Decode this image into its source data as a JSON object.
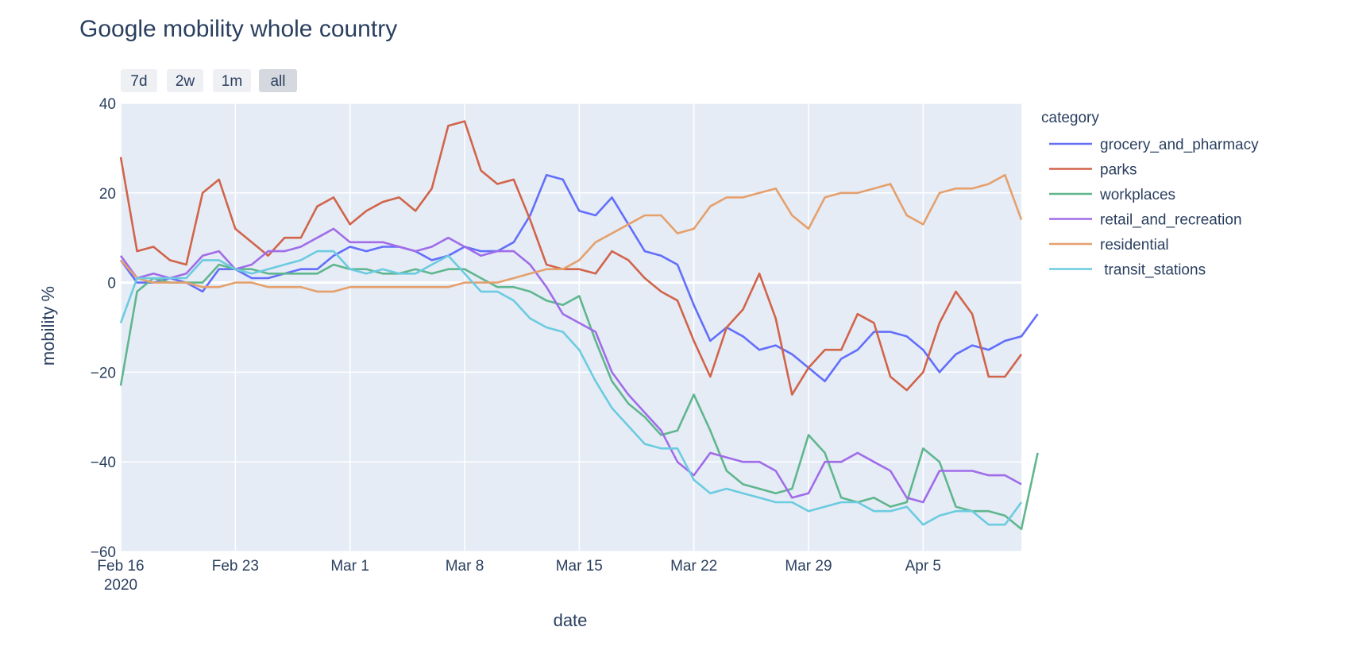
{
  "chart_data": {
    "type": "line",
    "title": "Google mobility whole country",
    "xlabel": "date",
    "ylabel": "mobility %",
    "legend_title": "category",
    "legend_position": "right",
    "ylim": [
      -60,
      40
    ],
    "xlim": [
      "2020-02-16",
      "2020-04-11"
    ],
    "yticks": [
      40,
      20,
      0,
      -20,
      -40,
      -60
    ],
    "ytick_labels": [
      "40",
      "20",
      "0",
      "−20",
      "−40",
      "−60"
    ],
    "xticks": [
      {
        "date": "2020-02-16",
        "label": "Feb 16",
        "sublabel": "2020"
      },
      {
        "date": "2020-02-23",
        "label": "Feb 23"
      },
      {
        "date": "2020-03-01",
        "label": "Mar 1"
      },
      {
        "date": "2020-03-08",
        "label": "Mar 8"
      },
      {
        "date": "2020-03-15",
        "label": "Mar 15"
      },
      {
        "date": "2020-03-22",
        "label": "Mar 22"
      },
      {
        "date": "2020-03-29",
        "label": "Mar 29"
      },
      {
        "date": "2020-04-05",
        "label": "Apr 5"
      }
    ],
    "grid": true,
    "x_start": "2020-02-16",
    "x_step_days": 1,
    "series": [
      {
        "name": "grocery_and_pharmacy",
        "color": "#636efa",
        "values": [
          5,
          0,
          0,
          1,
          0,
          -2,
          3,
          3,
          1,
          1,
          2,
          3,
          3,
          6,
          8,
          7,
          8,
          8,
          7,
          5,
          6,
          8,
          7,
          7,
          9,
          15,
          24,
          23,
          16,
          15,
          19,
          13,
          7,
          6,
          4,
          -5,
          -13,
          -10,
          -12,
          -15,
          -14,
          -16,
          -19,
          -22,
          -17,
          -15,
          -11,
          -11,
          -12,
          -15,
          -20,
          -16,
          -14,
          -15,
          -13,
          -12,
          -7
        ]
      },
      {
        "name": "parks",
        "color": "#d1644a",
        "values": [
          28,
          7,
          8,
          5,
          4,
          20,
          23,
          12,
          9,
          6,
          10,
          10,
          17,
          19,
          13,
          16,
          18,
          19,
          16,
          21,
          35,
          36,
          25,
          22,
          23,
          14,
          4,
          3,
          3,
          2,
          7,
          5,
          1,
          -2,
          -4,
          -13,
          -21,
          -10,
          -6,
          2,
          -8,
          -25,
          -19,
          -15,
          -15,
          -7,
          -9,
          -21,
          -24,
          -20,
          -9,
          -2,
          -7,
          -21,
          -21,
          -16
        ]
      },
      {
        "name": "workplaces",
        "color": "#60b68e",
        "values": [
          -23,
          -2,
          1,
          0,
          0,
          0,
          4,
          3,
          3,
          2,
          2,
          2,
          2,
          4,
          3,
          3,
          2,
          2,
          3,
          2,
          3,
          3,
          1,
          -1,
          -1,
          -2,
          -4,
          -5,
          -3,
          -13,
          -22,
          -27,
          -30,
          -34,
          -33,
          -25,
          -33,
          -42,
          -45,
          -46,
          -47,
          -46,
          -34,
          -38,
          -48,
          -49,
          -48,
          -50,
          -49,
          -37,
          -40,
          -50,
          -51,
          -51,
          -52,
          -55,
          -38
        ]
      },
      {
        "name": "retail_and_recreation",
        "color": "#a06ce8",
        "values": [
          6,
          1,
          2,
          1,
          2,
          6,
          7,
          3,
          4,
          7,
          7,
          8,
          10,
          12,
          9,
          9,
          9,
          8,
          7,
          8,
          10,
          8,
          6,
          7,
          7,
          4,
          -1,
          -7,
          -9,
          -11,
          -20,
          -25,
          -29,
          -33,
          -40,
          -43,
          -38,
          -39,
          -40,
          -40,
          -42,
          -48,
          -47,
          -40,
          -40,
          -38,
          -40,
          -42,
          -48,
          -49,
          -42,
          -42,
          -42,
          -43,
          -43,
          -45
        ]
      },
      {
        "name": "residential",
        "color": "#e5a06c",
        "values": [
          5,
          1,
          0,
          0,
          0,
          -1,
          -1,
          0,
          0,
          -1,
          -1,
          -1,
          -2,
          -2,
          -1,
          -1,
          -1,
          -1,
          -1,
          -1,
          -1,
          0,
          0,
          0,
          1,
          2,
          3,
          3,
          5,
          9,
          11,
          13,
          15,
          15,
          11,
          12,
          17,
          19,
          19,
          20,
          21,
          15,
          12,
          19,
          20,
          20,
          21,
          22,
          15,
          13,
          20,
          21,
          21,
          22,
          24,
          14
        ]
      },
      {
        "name": " transit_stations",
        "color": "#6ccbe0",
        "values": [
          -9,
          1,
          1,
          1,
          1,
          5,
          5,
          3,
          2,
          3,
          4,
          5,
          7,
          7,
          3,
          2,
          3,
          2,
          2,
          4,
          6,
          2,
          -2,
          -2,
          -4,
          -8,
          -10,
          -11,
          -15,
          -22,
          -28,
          -32,
          -36,
          -37,
          -37,
          -44,
          -47,
          -46,
          -47,
          -48,
          -49,
          -49,
          -51,
          -50,
          -49,
          -49,
          -51,
          -51,
          -50,
          -54,
          -52,
          -51,
          -51,
          -54,
          -54,
          -49
        ]
      }
    ]
  },
  "range_buttons": [
    {
      "label": "7d",
      "active": false
    },
    {
      "label": "2w",
      "active": false
    },
    {
      "label": "1m",
      "active": false
    },
    {
      "label": "all",
      "active": true
    }
  ]
}
